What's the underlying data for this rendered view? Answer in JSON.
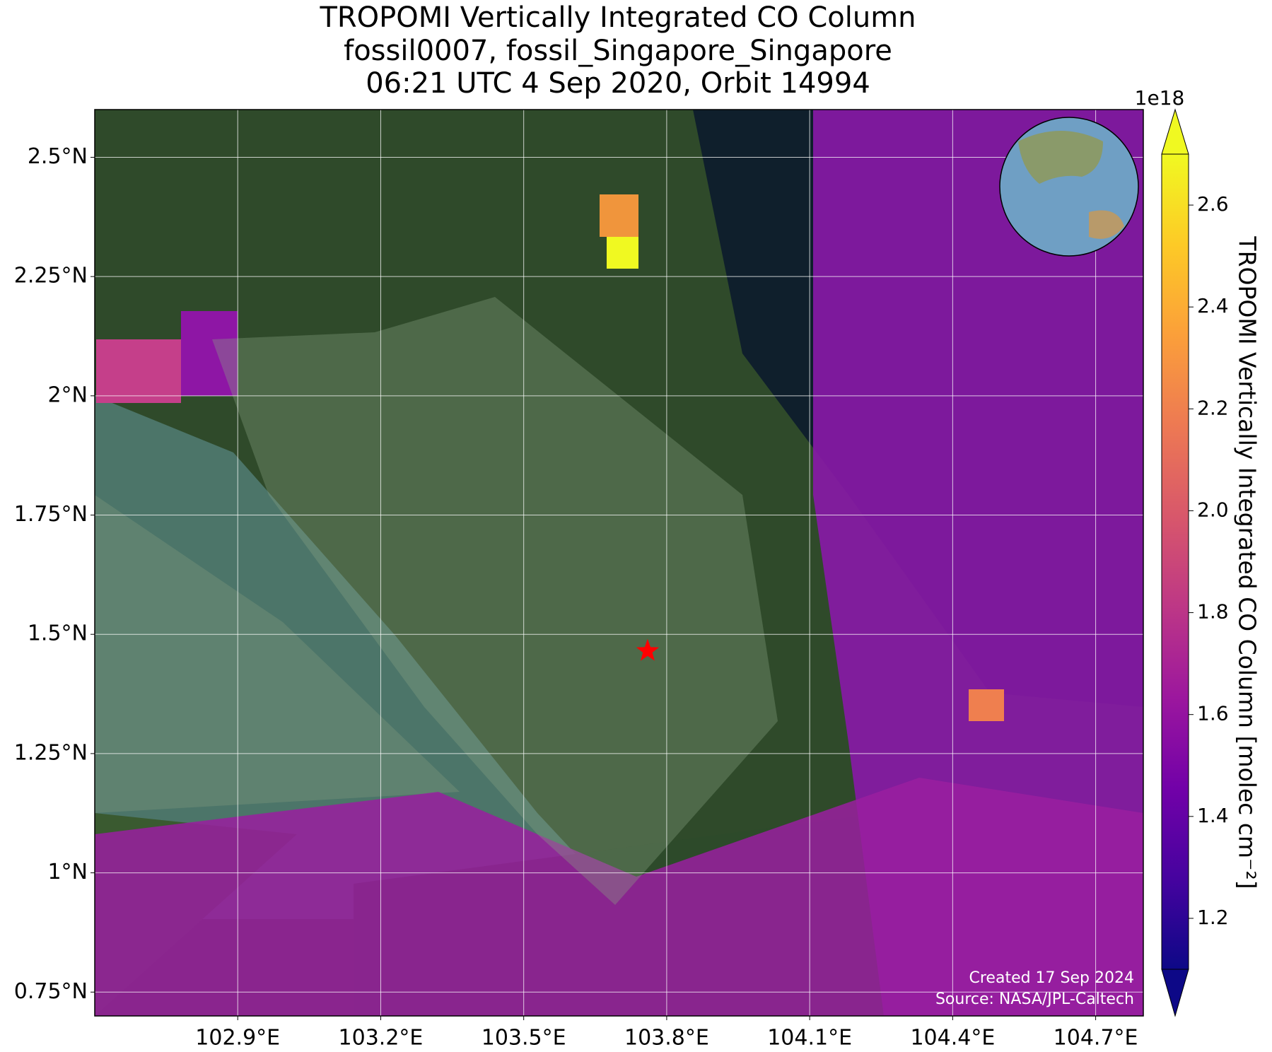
{
  "chart_data": {
    "type": "map",
    "title": [
      "TROPOMI Vertically Integrated CO Column",
      "fossil0007, fossil_Singapore_Singapore",
      "06:21 UTC 4 Sep 2020, Orbit 14994"
    ],
    "xlim": [
      102.6,
      104.8
    ],
    "ylim": [
      0.7,
      2.6
    ],
    "xticks": [
      {
        "value": 102.9,
        "label": "102.9°E"
      },
      {
        "value": 103.2,
        "label": "103.2°E"
      },
      {
        "value": 103.5,
        "label": "103.5°E"
      },
      {
        "value": 103.8,
        "label": "103.8°E"
      },
      {
        "value": 104.1,
        "label": "104.1°E"
      },
      {
        "value": 104.4,
        "label": "104.4°E"
      },
      {
        "value": 104.7,
        "label": "104.7°E"
      }
    ],
    "yticks": [
      {
        "value": 0.75,
        "label": "0.75°N"
      },
      {
        "value": 1,
        "label": "1°N"
      },
      {
        "value": 1.25,
        "label": "1.25°N"
      },
      {
        "value": 1.5,
        "label": "1.5°N"
      },
      {
        "value": 1.75,
        "label": "1.75°N"
      },
      {
        "value": 2,
        "label": "2°N"
      },
      {
        "value": 2.25,
        "label": "2.25°N"
      },
      {
        "value": 2.5,
        "label": "2.5°N"
      }
    ],
    "grid": true,
    "marker": {
      "lon": 103.76,
      "lat": 1.465,
      "color": "#ff0000"
    },
    "colorbar": {
      "label": "TROPOMI Vertically Integrated CO Column [molec cm⁻²]",
      "multiplier": "1e18",
      "colormap": "plasma",
      "clim": [
        1.1,
        2.7
      ],
      "ticks": [
        1.2,
        1.4,
        1.6,
        1.8,
        2.0,
        2.2,
        2.4,
        2.6
      ]
    },
    "annotations": [
      "Created 17 Sep 2024",
      "Source: NASA/JPL-Caltech"
    ]
  }
}
